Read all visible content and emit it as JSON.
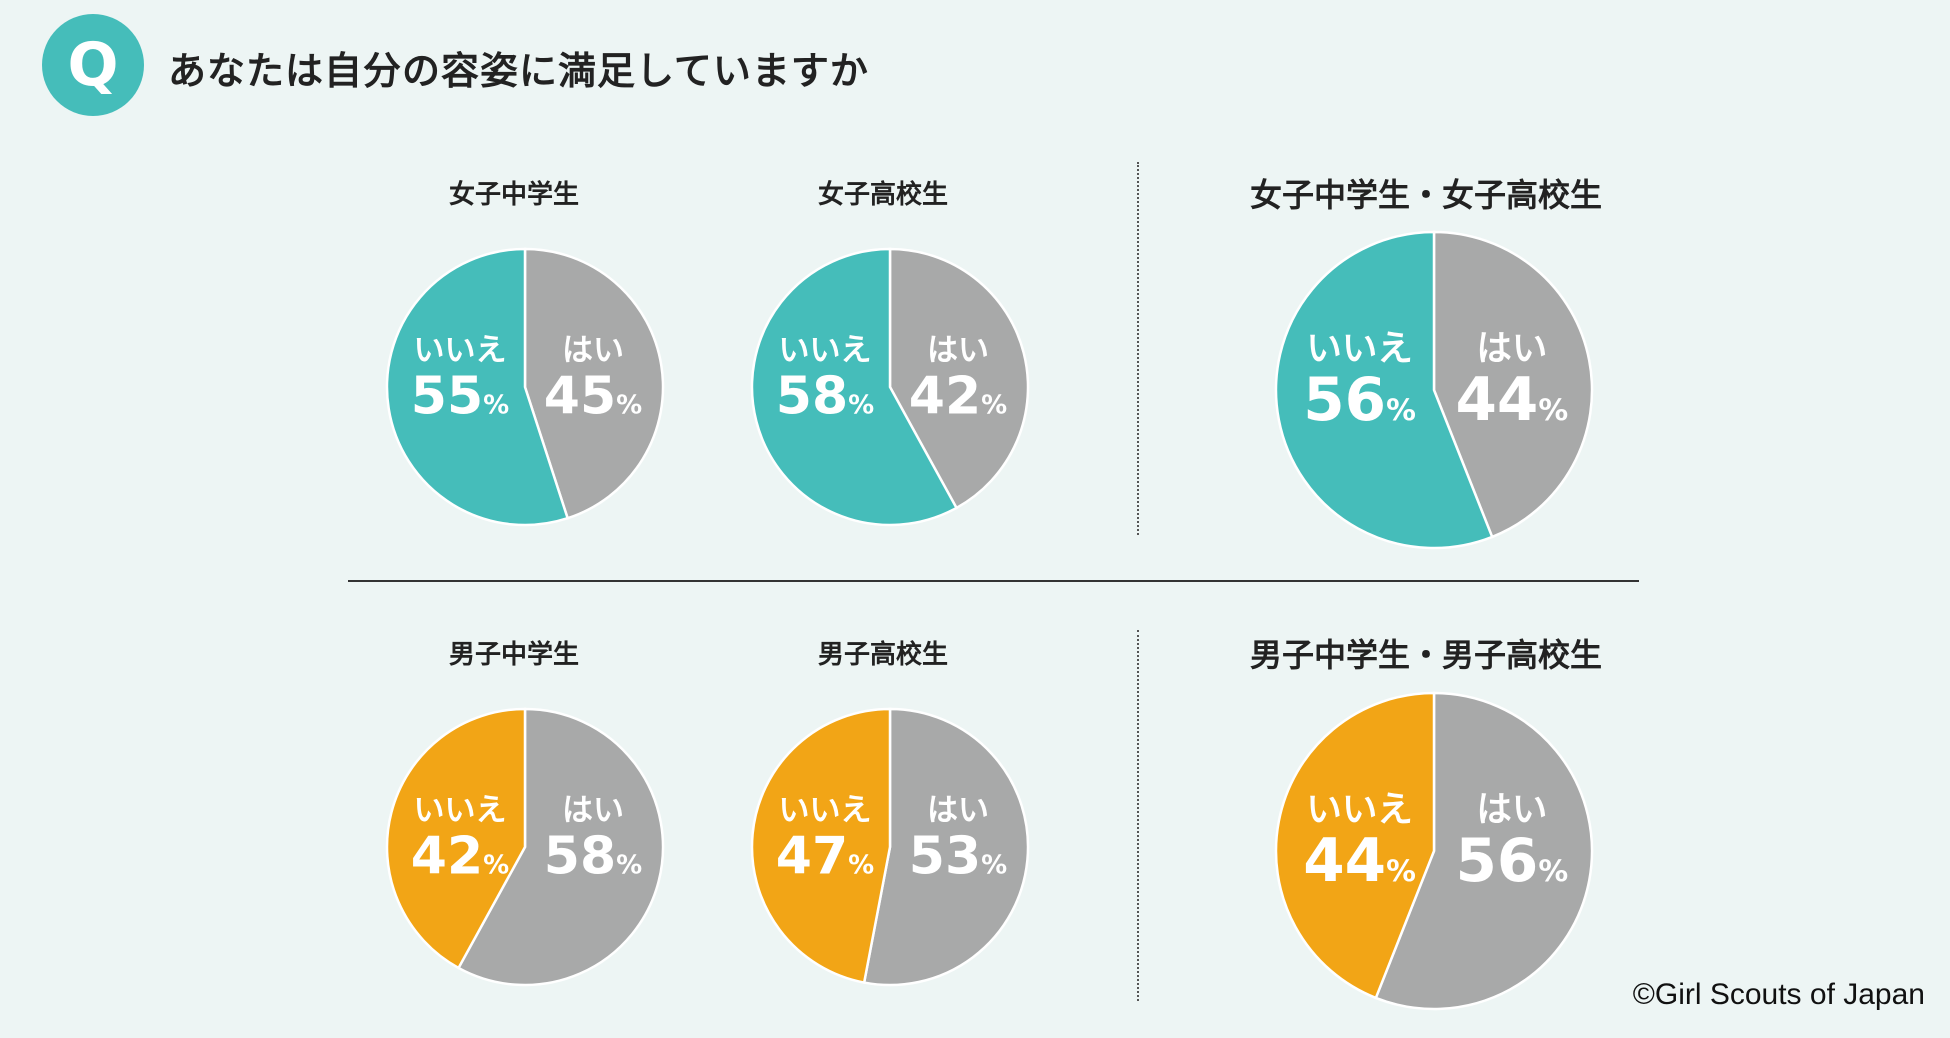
{
  "header": {
    "badge": "Q",
    "title": "あなたは自分の容姿に満足していますか"
  },
  "copyright": "©Girl Scouts of Japan",
  "colors": {
    "yes": "#a8a9a9",
    "no_girls": "#45bdba",
    "no_boys": "#f2a516",
    "background": "#edf5f4"
  },
  "chart_data": [
    {
      "type": "pie",
      "title": "女子中学生",
      "labels": [
        "はい",
        "いいえ"
      ],
      "values": [
        45,
        55
      ],
      "unit": "%"
    },
    {
      "type": "pie",
      "title": "女子高校生",
      "labels": [
        "はい",
        "いいえ"
      ],
      "values": [
        42,
        58
      ],
      "unit": "%"
    },
    {
      "type": "pie",
      "title": "女子中学生・女子高校生",
      "labels": [
        "はい",
        "いいえ"
      ],
      "values": [
        44,
        56
      ],
      "unit": "%"
    },
    {
      "type": "pie",
      "title": "男子中学生",
      "labels": [
        "はい",
        "いいえ"
      ],
      "values": [
        58,
        42
      ],
      "unit": "%"
    },
    {
      "type": "pie",
      "title": "男子高校生",
      "labels": [
        "はい",
        "いいえ"
      ],
      "values": [
        53,
        47
      ],
      "unit": "%"
    },
    {
      "type": "pie",
      "title": "男子中学生・男子高校生",
      "labels": [
        "はい",
        "いいえ"
      ],
      "values": [
        56,
        44
      ],
      "unit": "%"
    }
  ]
}
